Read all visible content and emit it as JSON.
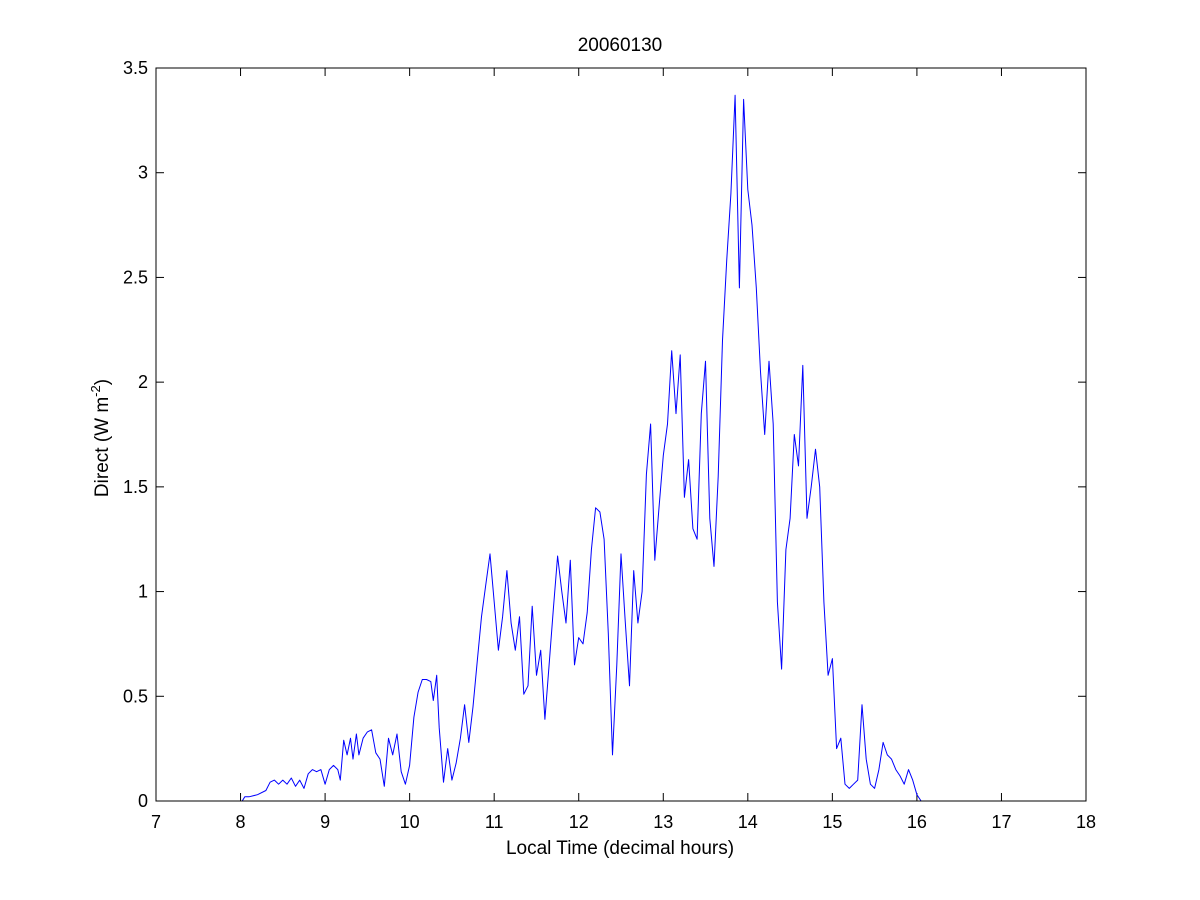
{
  "chart_data": {
    "type": "line",
    "title": "20060130",
    "xlabel": "Local Time (decimal hours)",
    "ylabel_main": "Direct (W m",
    "ylabel_sup": "-2",
    "ylabel_close": ")",
    "xlim": [
      7,
      18
    ],
    "ylim": [
      0,
      3.5
    ],
    "xticks": [
      7,
      8,
      9,
      10,
      11,
      12,
      13,
      14,
      15,
      16,
      17,
      18
    ],
    "yticks": [
      0,
      0.5,
      1,
      1.5,
      2,
      2.5,
      3,
      3.5
    ],
    "xtick_labels": [
      "7",
      "8",
      "9",
      "10",
      "11",
      "12",
      "13",
      "14",
      "15",
      "16",
      "17",
      "18"
    ],
    "ytick_labels": [
      "0",
      "0.5",
      "1",
      "1.5",
      "2",
      "2.5",
      "3",
      "3.5"
    ],
    "grid": false,
    "series": [
      {
        "color": "#0000ff",
        "x": [
          8.02,
          8.05,
          8.1,
          8.2,
          8.3,
          8.35,
          8.4,
          8.45,
          8.5,
          8.55,
          8.6,
          8.65,
          8.7,
          8.75,
          8.8,
          8.85,
          8.9,
          8.95,
          9.0,
          9.05,
          9.1,
          9.15,
          9.18,
          9.22,
          9.26,
          9.3,
          9.33,
          9.37,
          9.4,
          9.45,
          9.5,
          9.55,
          9.6,
          9.65,
          9.7,
          9.75,
          9.8,
          9.85,
          9.9,
          9.95,
          10.0,
          10.05,
          10.1,
          10.15,
          10.2,
          10.25,
          10.28,
          10.32,
          10.35,
          10.4,
          10.45,
          10.5,
          10.55,
          10.6,
          10.65,
          10.7,
          10.75,
          10.8,
          10.85,
          10.9,
          10.95,
          11.0,
          11.05,
          11.1,
          11.15,
          11.2,
          11.25,
          11.3,
          11.35,
          11.4,
          11.45,
          11.5,
          11.55,
          11.6,
          11.65,
          11.7,
          11.75,
          11.8,
          11.85,
          11.9,
          11.95,
          12.0,
          12.05,
          12.1,
          12.15,
          12.2,
          12.25,
          12.3,
          12.35,
          12.4,
          12.45,
          12.5,
          12.55,
          12.6,
          12.65,
          12.7,
          12.75,
          12.8,
          12.85,
          12.9,
          12.95,
          13.0,
          13.05,
          13.1,
          13.15,
          13.2,
          13.25,
          13.3,
          13.35,
          13.4,
          13.45,
          13.5,
          13.55,
          13.6,
          13.65,
          13.7,
          13.75,
          13.8,
          13.85,
          13.9,
          13.95,
          14.0,
          14.05,
          14.1,
          14.15,
          14.2,
          14.25,
          14.3,
          14.35,
          14.4,
          14.45,
          14.5,
          14.55,
          14.6,
          14.65,
          14.7,
          14.75,
          14.8,
          14.85,
          14.9,
          14.95,
          15.0,
          15.05,
          15.1,
          15.15,
          15.2,
          15.25,
          15.3,
          15.35,
          15.4,
          15.45,
          15.5,
          15.55,
          15.6,
          15.65,
          15.7,
          15.75,
          15.8,
          15.85,
          15.9,
          15.95,
          16.0,
          16.05
        ],
        "y": [
          0.0,
          0.02,
          0.02,
          0.03,
          0.05,
          0.09,
          0.1,
          0.08,
          0.1,
          0.08,
          0.11,
          0.07,
          0.1,
          0.06,
          0.13,
          0.15,
          0.14,
          0.15,
          0.08,
          0.15,
          0.17,
          0.15,
          0.1,
          0.29,
          0.22,
          0.3,
          0.2,
          0.32,
          0.22,
          0.3,
          0.33,
          0.34,
          0.23,
          0.2,
          0.07,
          0.3,
          0.22,
          0.32,
          0.14,
          0.08,
          0.17,
          0.4,
          0.52,
          0.58,
          0.58,
          0.57,
          0.48,
          0.6,
          0.35,
          0.09,
          0.25,
          0.1,
          0.18,
          0.3,
          0.46,
          0.28,
          0.45,
          0.67,
          0.88,
          1.03,
          1.18,
          0.95,
          0.72,
          0.88,
          1.1,
          0.85,
          0.72,
          0.88,
          0.51,
          0.55,
          0.93,
          0.6,
          0.72,
          0.39,
          0.65,
          0.92,
          1.17,
          1.0,
          0.85,
          1.15,
          0.65,
          0.78,
          0.75,
          0.9,
          1.2,
          1.4,
          1.38,
          1.25,
          0.8,
          0.22,
          0.65,
          1.18,
          0.86,
          0.55,
          1.1,
          0.85,
          1.0,
          1.56,
          1.8,
          1.15,
          1.4,
          1.65,
          1.8,
          2.15,
          1.85,
          2.13,
          1.45,
          1.63,
          1.3,
          1.25,
          1.85,
          2.1,
          1.35,
          1.12,
          1.55,
          2.2,
          2.58,
          2.9,
          3.37,
          2.45,
          3.35,
          2.92,
          2.75,
          2.45,
          2.05,
          1.75,
          2.1,
          1.8,
          0.95,
          0.63,
          1.2,
          1.35,
          1.75,
          1.6,
          2.08,
          1.35,
          1.5,
          1.68,
          1.5,
          0.95,
          0.6,
          0.68,
          0.25,
          0.3,
          0.08,
          0.06,
          0.08,
          0.1,
          0.46,
          0.2,
          0.08,
          0.06,
          0.15,
          0.28,
          0.22,
          0.2,
          0.15,
          0.12,
          0.08,
          0.15,
          0.1,
          0.03,
          0.0
        ]
      }
    ]
  }
}
